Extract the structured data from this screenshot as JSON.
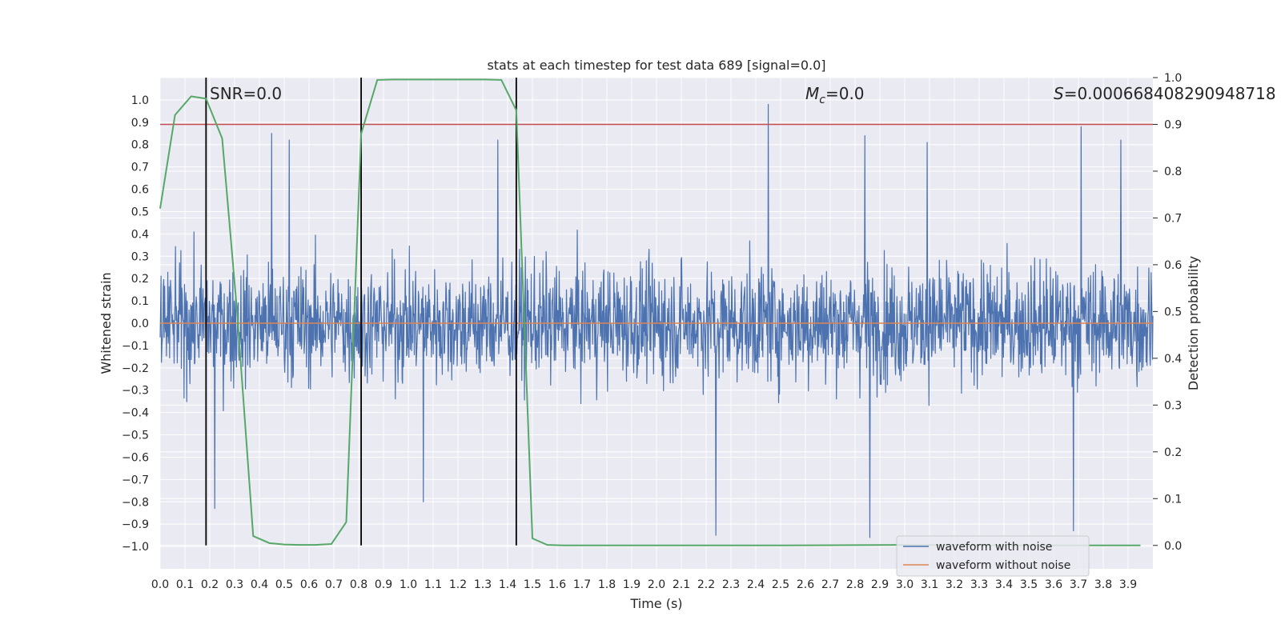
{
  "chart_data": {
    "type": "line",
    "title": "stats at each timestep for test data 689 [signal=0.0]",
    "xlabel": "Time (s)",
    "ylabel": "Whitened strain",
    "y2label": "Detection probability",
    "xlim": [
      0.0,
      4.0
    ],
    "ylim": [
      -1.1,
      1.1
    ],
    "y2lim": [
      -0.05,
      1.0
    ],
    "grid": true,
    "x_ticks": [
      "0.0",
      "0.1",
      "0.2",
      "0.3",
      "0.4",
      "0.5",
      "0.6",
      "0.7",
      "0.8",
      "0.9",
      "1.0",
      "1.1",
      "1.2",
      "1.3",
      "1.4",
      "1.5",
      "1.6",
      "1.7",
      "1.8",
      "1.9",
      "2.0",
      "2.1",
      "2.2",
      "2.3",
      "2.4",
      "2.5",
      "2.6",
      "2.7",
      "2.8",
      "2.9",
      "3.0",
      "3.1",
      "3.2",
      "3.3",
      "3.4",
      "3.5",
      "3.6",
      "3.7",
      "3.8",
      "3.9"
    ],
    "y_ticks": [
      "1.0",
      "0.9",
      "0.8",
      "0.7",
      "0.6",
      "0.5",
      "0.4",
      "0.3",
      "0.2",
      "0.1",
      "0.0",
      "−0.1",
      "−0.2",
      "−0.3",
      "−0.4",
      "−0.5",
      "−0.6",
      "−0.7",
      "−0.8",
      "−0.9",
      "−1.0"
    ],
    "y2_ticks": [
      "1.0",
      "0.9",
      "0.8",
      "0.7",
      "0.6",
      "0.5",
      "0.4",
      "0.3",
      "0.2",
      "0.1",
      "0.0"
    ],
    "annotations": {
      "snr": "SNR=0.0",
      "mc_symbol": "M",
      "mc_sub": "c",
      "mc_value": "=0.0",
      "s_symbol": "S",
      "s_value": "=0.000668408290948718"
    },
    "threshold": {
      "value": 0.9,
      "axis": "y2",
      "color": "#c44e52"
    },
    "vlines_x": [
      0.185,
      0.81,
      1.435
    ],
    "series": [
      {
        "name": "waveform with noise",
        "color": "#4c72b0",
        "axis": "y",
        "kind": "noise",
        "amplitude_range": [
          -0.96,
          0.98
        ],
        "peaks": [
          [
            0.22,
            -0.83
          ],
          [
            0.45,
            0.85
          ],
          [
            0.52,
            0.82
          ],
          [
            1.06,
            -0.8
          ],
          [
            1.36,
            0.82
          ],
          [
            2.24,
            -0.95
          ],
          [
            2.45,
            0.98
          ],
          [
            2.84,
            0.84
          ],
          [
            2.86,
            -0.96
          ],
          [
            3.09,
            0.81
          ],
          [
            3.68,
            -0.93
          ],
          [
            3.71,
            0.88
          ],
          [
            3.87,
            0.82
          ]
        ]
      },
      {
        "name": "waveform without noise",
        "color": "#dd8452",
        "axis": "y",
        "values_const": 0.0
      },
      {
        "name": "detection probability",
        "color": "#55a868",
        "axis": "y2",
        "x": [
          0.0,
          0.06,
          0.125,
          0.185,
          0.25,
          0.31,
          0.375,
          0.44,
          0.5,
          0.56,
          0.625,
          0.69,
          0.75,
          0.81,
          0.875,
          0.94,
          1.0,
          1.06,
          1.125,
          1.19,
          1.25,
          1.31,
          1.375,
          1.435,
          1.5,
          1.56,
          1.625,
          1.69,
          1.75,
          2.0,
          2.5,
          3.0,
          3.5,
          3.95
        ],
        "y": [
          0.72,
          0.92,
          0.96,
          0.955,
          0.87,
          0.5,
          0.02,
          0.005,
          0.002,
          0.001,
          0.001,
          0.003,
          0.05,
          0.88,
          0.995,
          0.996,
          0.996,
          0.996,
          0.996,
          0.996,
          0.996,
          0.996,
          0.995,
          0.93,
          0.015,
          0.001,
          0.0,
          0.0,
          0.0,
          0.0,
          0.0,
          0.001,
          0.0,
          0.0
        ]
      }
    ],
    "legend": {
      "position": "lower-right",
      "entries": [
        {
          "label": "waveform with noise",
          "color": "#4c72b0"
        },
        {
          "label": "waveform without noise",
          "color": "#dd8452"
        }
      ]
    },
    "colors": {
      "plot_bg": "#eaeaf2",
      "grid": "#ffffff",
      "vline": "#000000"
    }
  }
}
